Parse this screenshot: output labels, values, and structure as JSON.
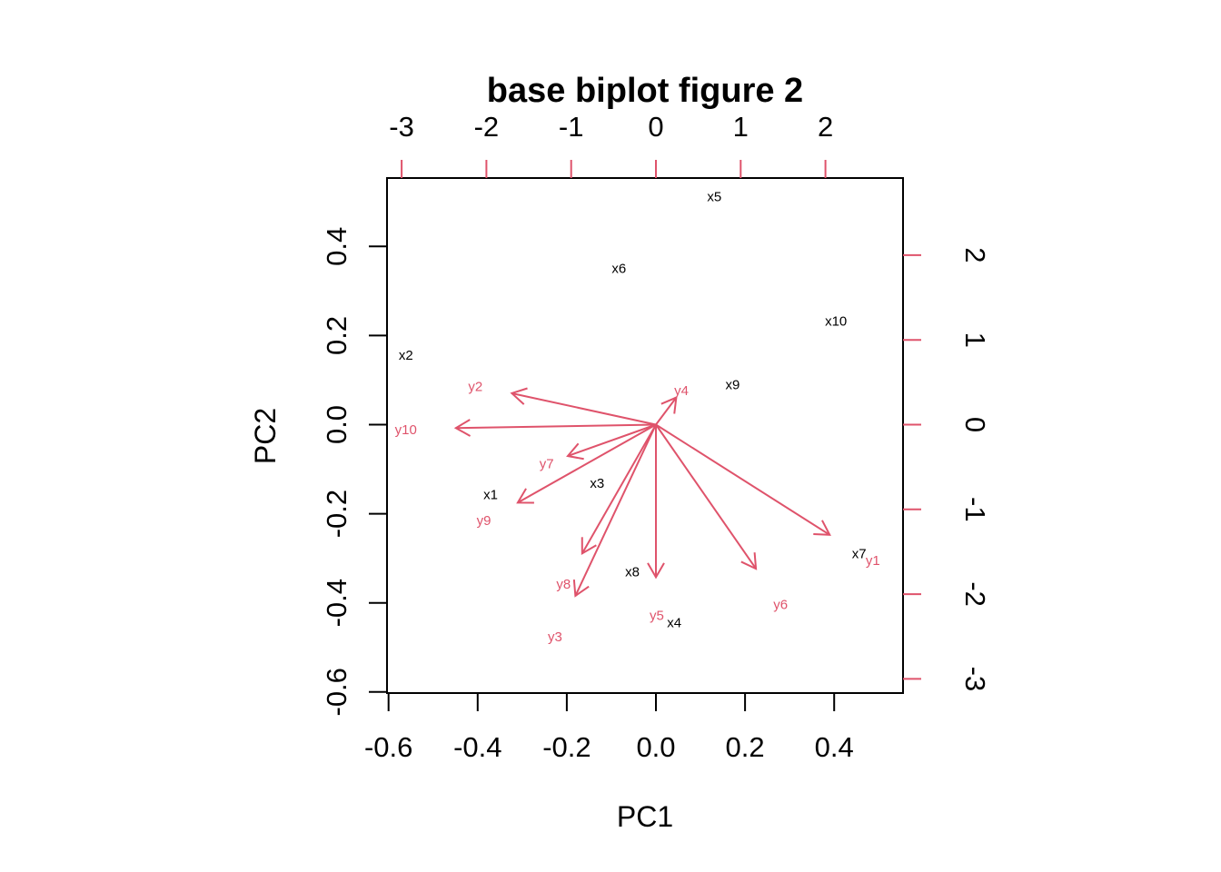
{
  "chart_data": {
    "type": "biplot",
    "title": "base biplot figure 2",
    "xlabel": "PC1",
    "ylabel": "PC2",
    "xlim": [
      -0.6,
      0.55
    ],
    "ylim": [
      -0.6,
      0.55
    ],
    "bottom_ticks": [
      "-0.6",
      "-0.4",
      "-0.2",
      "0.0",
      "0.2",
      "0.4"
    ],
    "left_ticks": [
      "-0.6",
      "-0.4",
      "-0.2",
      "0.0",
      "0.2",
      "0.4"
    ],
    "top_ticks": [
      "-3",
      "-2",
      "-1",
      "0",
      "1",
      "2"
    ],
    "right_ticks": [
      "-3",
      "-2",
      "-1",
      "0",
      "1",
      "2"
    ],
    "loading_color": "#DF536B",
    "point_color": "#000000",
    "points": [
      {
        "label": "x1",
        "x": -0.371,
        "y": -0.157
      },
      {
        "label": "x2",
        "x": -0.561,
        "y": 0.156
      },
      {
        "label": "x3",
        "x": -0.132,
        "y": -0.131
      },
      {
        "label": "x4",
        "x": 0.041,
        "y": -0.444
      },
      {
        "label": "x5",
        "x": 0.131,
        "y": 0.512
      },
      {
        "label": "x6",
        "x": -0.083,
        "y": 0.351
      },
      {
        "label": "x7",
        "x": 0.456,
        "y": -0.29
      },
      {
        "label": "x8",
        "x": -0.053,
        "y": -0.33
      },
      {
        "label": "x9",
        "x": 0.172,
        "y": 0.09
      },
      {
        "label": "x10",
        "x": 0.404,
        "y": 0.232
      }
    ],
    "loadings": [
      {
        "label": "y1",
        "x": 2.05,
        "y": -1.3,
        "lx": 2.56,
        "ly": -1.6
      },
      {
        "label": "y2",
        "x": -1.7,
        "y": 0.37,
        "lx": -2.13,
        "ly": 0.45
      },
      {
        "label": "y3",
        "x": -0.95,
        "y": -2.02,
        "lx": -1.19,
        "ly": -2.5
      },
      {
        "label": "y4",
        "x": 0.24,
        "y": 0.32,
        "lx": 0.3,
        "ly": 0.4
      },
      {
        "label": "y5",
        "x": 0.0,
        "y": -1.8,
        "lx": 0.01,
        "ly": -2.25
      },
      {
        "label": "y6",
        "x": 1.18,
        "y": -1.7,
        "lx": 1.47,
        "ly": -2.12
      },
      {
        "label": "y7",
        "x": -1.04,
        "y": -0.37,
        "lx": -1.29,
        "ly": -0.46
      },
      {
        "label": "y8",
        "x": -0.87,
        "y": -1.52,
        "lx": -1.09,
        "ly": -1.88
      },
      {
        "label": "y9",
        "x": -1.63,
        "y": -0.92,
        "lx": -2.03,
        "ly": -1.13
      },
      {
        "label": "y10",
        "x": -2.36,
        "y": -0.04,
        "lx": -2.95,
        "ly": -0.06
      }
    ]
  }
}
